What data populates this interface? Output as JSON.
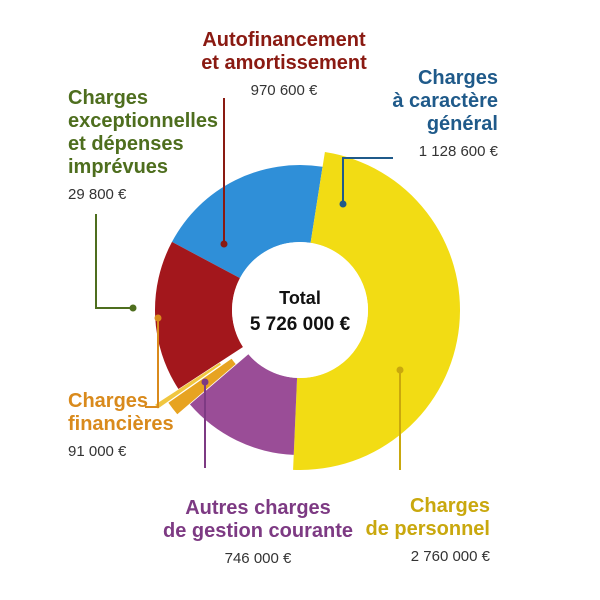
{
  "chart_data": {
    "type": "pie",
    "donut": true,
    "center_label": "Total",
    "center_value": "5 726 000 €",
    "slices": [
      {
        "label_lines": [
          "Charges",
          "à caractère",
          "général"
        ],
        "value": 1128600,
        "value_text": "1 128 600 €",
        "color": "#2f8fd8",
        "label_color": "#1f5a8a"
      },
      {
        "label_lines": [
          "Charges",
          "de personnel"
        ],
        "value": 2760000,
        "value_text": "2 760 000 €",
        "color": "#f2dc14",
        "label_color": "#c9a80e"
      },
      {
        "label_lines": [
          "Autres charges",
          "de gestion courante"
        ],
        "value": 746000,
        "value_text": "746 000 €",
        "color": "#9a4d97",
        "label_color": "#7d3a83"
      },
      {
        "label_lines": [
          "Charges",
          "financières"
        ],
        "value": 91000,
        "value_text": "91 000 €",
        "color": "#e7a321",
        "label_color": "#d98a1c"
      },
      {
        "label_lines": [
          "Charges",
          "exceptionnelles",
          "et dépenses",
          "imprévues"
        ],
        "value": 29800,
        "value_text": "29 800 €",
        "color": "#f0c640",
        "label_color": "#4e6e1e"
      },
      {
        "label_lines": [
          "Autofinancement",
          "et amortissement"
        ],
        "value": 970600,
        "value_text": "970 600 €",
        "color": "#a3171c",
        "label_color": "#8a1a12"
      }
    ]
  }
}
